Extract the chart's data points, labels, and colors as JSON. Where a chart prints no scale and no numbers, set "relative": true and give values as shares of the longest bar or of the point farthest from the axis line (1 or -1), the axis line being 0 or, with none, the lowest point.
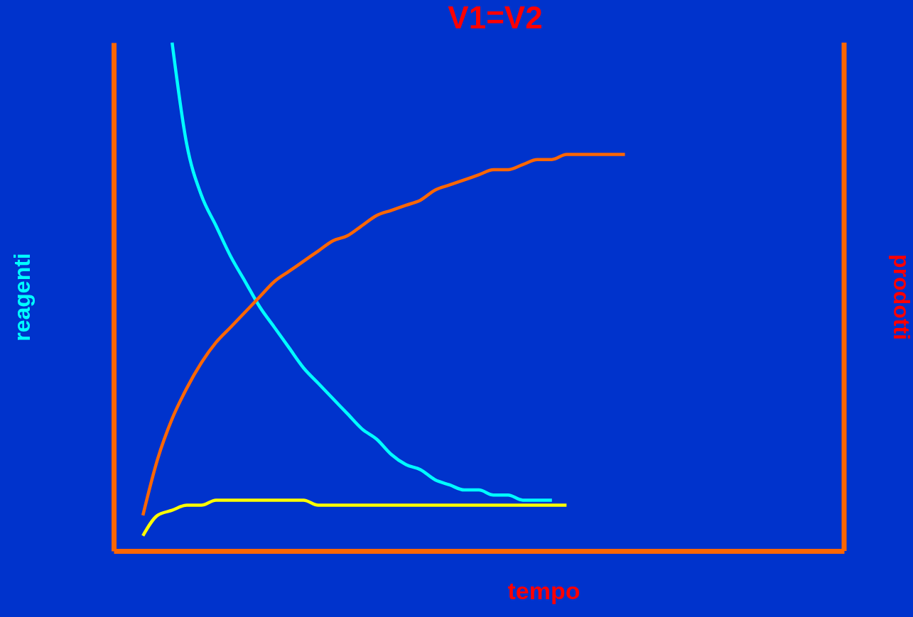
{
  "chart_data": {
    "type": "line",
    "title": "V1=V2",
    "xlabel": "tempo",
    "ylabel": "reagenti",
    "y2label": "prodotti",
    "relative": true,
    "grid": false,
    "legend": false,
    "marker": "none",
    "line_style": "solid",
    "tick_labels": false,
    "categories": [
      null,
      null,
      null,
      null,
      null,
      null,
      null,
      null,
      null,
      null,
      null,
      null,
      null,
      null,
      null,
      null,
      null,
      null,
      null,
      null,
      null,
      null,
      null,
      null,
      null,
      null,
      null,
      null,
      null,
      null,
      null,
      null,
      null,
      null,
      null,
      null,
      null,
      null,
      null,
      null,
      null,
      null,
      null,
      null,
      null,
      null,
      null,
      null,
      null,
      null,
      null
    ],
    "series": [
      {
        "color": "#00ffff",
        "values": [
          null,
          null,
          null,
          null,
          1.0,
          0.8,
          0.7,
          0.64,
          0.58,
          0.53,
          0.48,
          0.44,
          0.4,
          0.36,
          0.33,
          0.3,
          0.27,
          0.24,
          0.22,
          0.19,
          0.17,
          0.16,
          0.14,
          0.13,
          0.12,
          0.12,
          0.11,
          0.11,
          0.1,
          0.1,
          0.1,
          null,
          null,
          null,
          null,
          null,
          null,
          null,
          null,
          null,
          null,
          null,
          null,
          null,
          null,
          null,
          null,
          null,
          null,
          null,
          null
        ]
      },
      {
        "color": "#ff6600",
        "values": [
          null,
          null,
          0.07,
          0.18,
          0.26,
          0.32,
          0.37,
          0.41,
          0.44,
          0.47,
          0.5,
          0.53,
          0.55,
          0.57,
          0.59,
          0.61,
          0.62,
          0.64,
          0.66,
          0.67,
          0.68,
          0.69,
          0.71,
          0.72,
          0.73,
          0.74,
          0.75,
          0.75,
          0.76,
          0.77,
          0.77,
          0.78,
          0.78,
          0.78,
          0.78,
          0.78,
          null,
          null,
          null,
          null,
          null,
          null,
          null,
          null,
          null,
          null,
          null,
          null,
          null,
          null,
          null
        ]
      },
      {
        "color": "#ffff00",
        "values": [
          null,
          null,
          0.03,
          0.07,
          0.08,
          0.09,
          0.09,
          0.1,
          0.1,
          0.1,
          0.1,
          0.1,
          0.1,
          0.1,
          0.09,
          0.09,
          0.09,
          0.09,
          0.09,
          0.09,
          0.09,
          0.09,
          0.09,
          0.09,
          0.09,
          0.09,
          0.09,
          0.09,
          0.09,
          0.09,
          0.09,
          0.09,
          null,
          null,
          null,
          null,
          null,
          null,
          null,
          null,
          null,
          null,
          null,
          null,
          null,
          null,
          null,
          null,
          null,
          null,
          null
        ]
      }
    ]
  }
}
